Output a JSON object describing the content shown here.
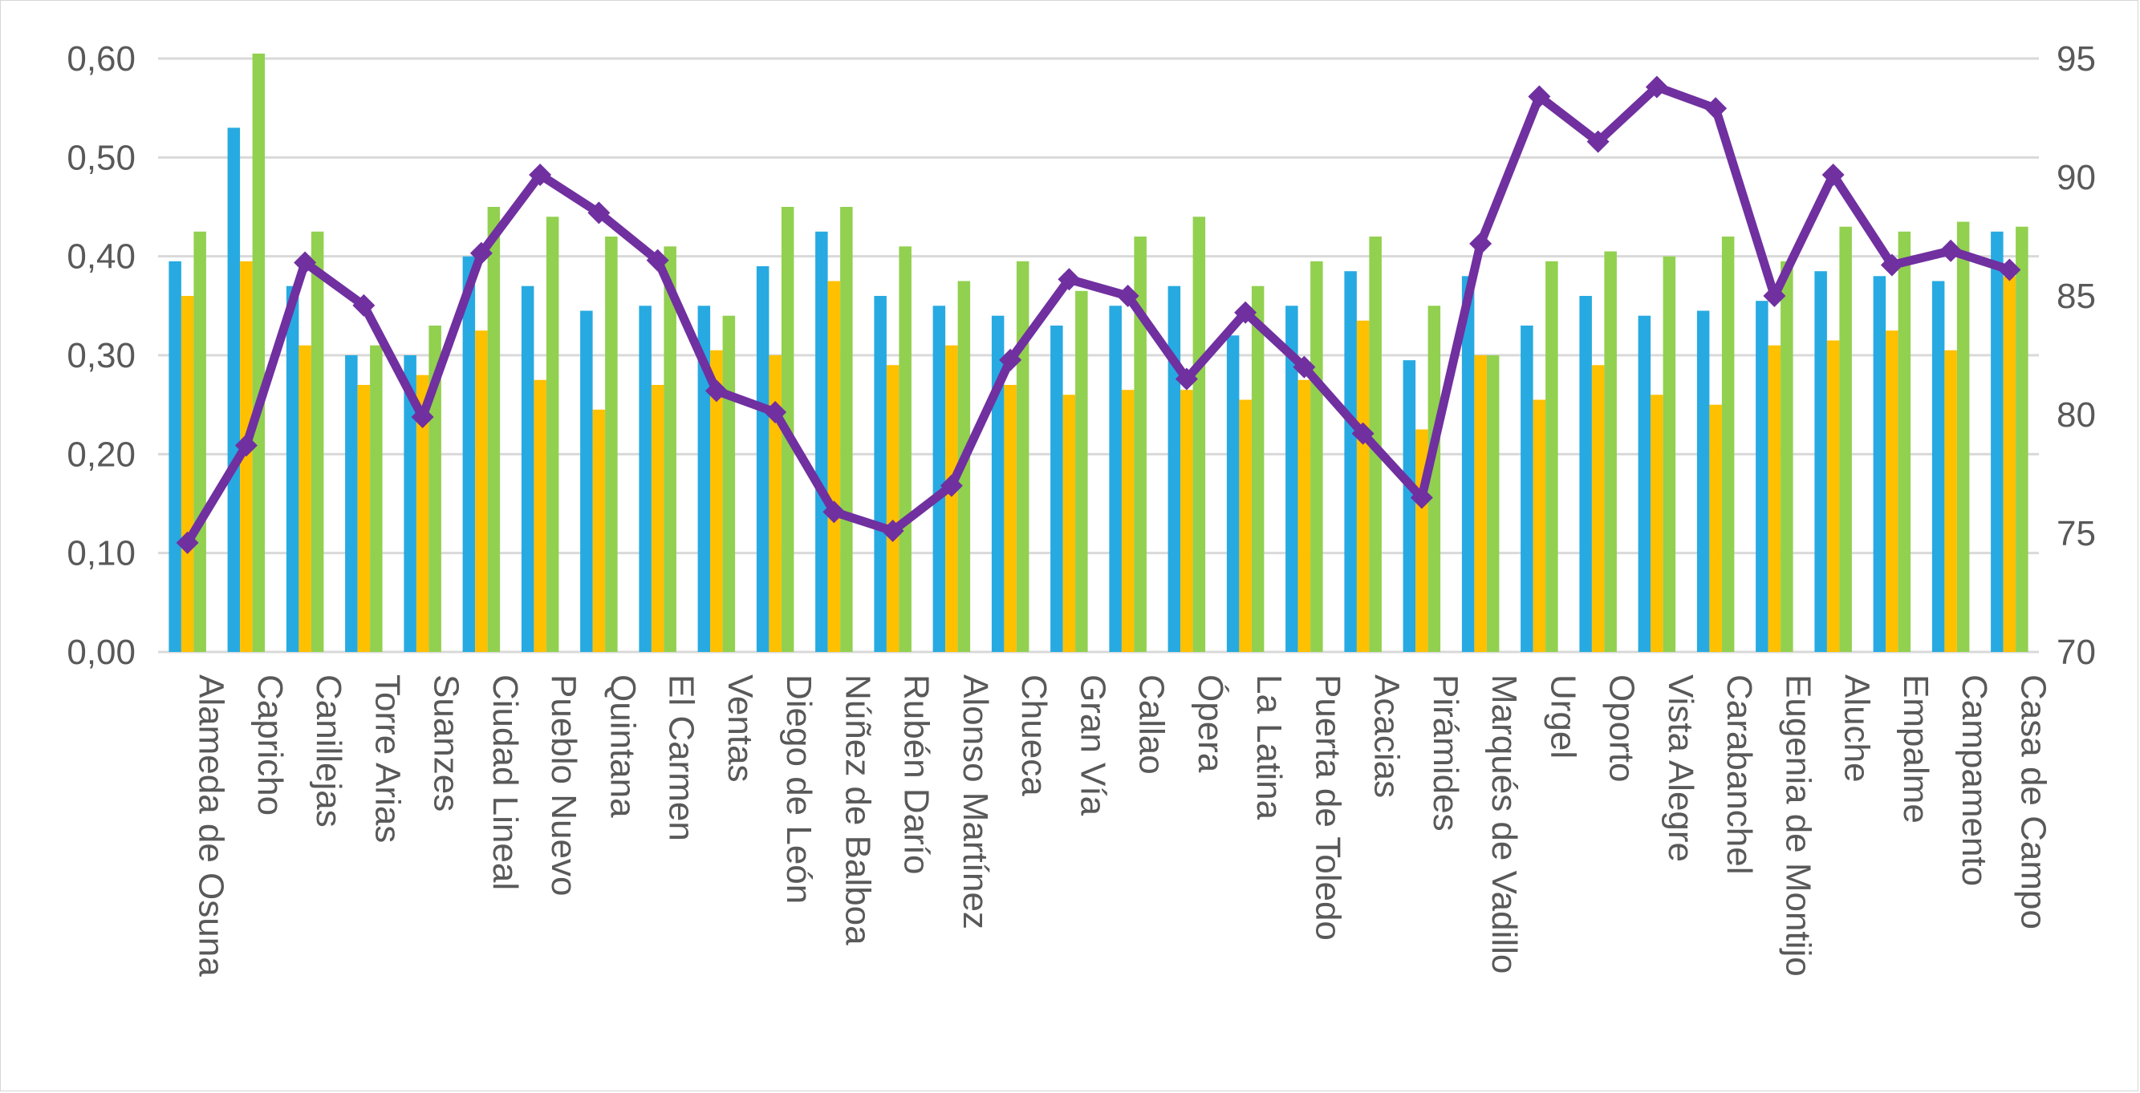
{
  "chart_data": {
    "type": "bar",
    "subtype": "grouped-bars-with-line-overlay",
    "title": "",
    "xlabel": "",
    "ylabel": "",
    "legend": "none",
    "grid": true,
    "categories": [
      "Alameda de Osuna",
      "Capricho",
      "Canillejas",
      "Torre Arias",
      "Suanzes",
      "Ciudad Lineal",
      "Pueblo Nuevo",
      "Quintana",
      "El Carmen",
      "Ventas",
      "Diego de León",
      "Núñez de Balboa",
      "Rubén Darío",
      "Alonso Martínez",
      "Chueca",
      "Gran Vía",
      "Callao",
      "Ópera",
      "La Latina",
      "Puerta de Toledo",
      "Acacias",
      "Pirámides",
      "Marqués de Vadillo",
      "Urgel",
      "Oporto",
      "Vista Alegre",
      "Carabanchel",
      "Eugenia de Montijo",
      "Aluche",
      "Empalme",
      "Campamento",
      "Casa de Campo"
    ],
    "series": [
      {
        "name": "blue-bars",
        "type": "bar",
        "axis": "left",
        "color": "#27AAE1",
        "values": [
          0.395,
          0.53,
          0.37,
          0.3,
          0.3,
          0.4,
          0.37,
          0.345,
          0.35,
          0.35,
          0.39,
          0.425,
          0.36,
          0.35,
          0.34,
          0.33,
          0.35,
          0.37,
          0.32,
          0.35,
          0.385,
          0.295,
          0.38,
          0.33,
          0.36,
          0.34,
          0.345,
          0.355,
          0.385,
          0.38,
          0.375,
          0.425
        ]
      },
      {
        "name": "yellow-bars",
        "type": "bar",
        "axis": "left",
        "color": "#FFC000",
        "values": [
          0.36,
          0.395,
          0.31,
          0.27,
          0.28,
          0.325,
          0.275,
          0.245,
          0.27,
          0.305,
          0.3,
          0.375,
          0.29,
          0.31,
          0.27,
          0.26,
          0.265,
          0.265,
          0.255,
          0.275,
          0.335,
          0.225,
          0.3,
          0.255,
          0.29,
          0.26,
          0.25,
          0.31,
          0.315,
          0.325,
          0.305,
          0.38
        ]
      },
      {
        "name": "green-bars",
        "type": "bar",
        "axis": "left",
        "color": "#92D050",
        "values": [
          0.425,
          0.605,
          0.425,
          0.31,
          0.33,
          0.45,
          0.44,
          0.42,
          0.41,
          0.34,
          0.45,
          0.45,
          0.41,
          0.375,
          0.395,
          0.365,
          0.42,
          0.44,
          0.37,
          0.395,
          0.42,
          0.35,
          0.3,
          0.395,
          0.405,
          0.4,
          0.42,
          0.395,
          0.43,
          0.425,
          0.435,
          0.43
        ]
      },
      {
        "name": "purple-line",
        "type": "line",
        "axis": "right",
        "color": "#7030A0",
        "marker": "diamond",
        "values": [
          74.6,
          78.7,
          86.4,
          84.6,
          79.9,
          86.8,
          90.1,
          88.5,
          86.5,
          81.0,
          80.1,
          75.9,
          75.1,
          77.0,
          82.3,
          85.7,
          85.0,
          81.5,
          84.3,
          82.0,
          79.2,
          76.5,
          87.2,
          93.4,
          91.5,
          93.8,
          92.9,
          85.0,
          90.1,
          86.3,
          86.9,
          86.1
        ]
      }
    ],
    "left_axis": {
      "min": 0,
      "max": 0.6,
      "step": 0.1,
      "tick_labels": [
        "0,00",
        "0,10",
        "0,20",
        "0,30",
        "0,40",
        "0,50",
        "0,60"
      ]
    },
    "right_axis": {
      "min": 70,
      "max": 95,
      "step": 5,
      "tick_labels": [
        "70",
        "75",
        "80",
        "85",
        "90",
        "95"
      ]
    }
  },
  "colors": {
    "background": "#FFFFFF",
    "gridline": "#D9D9D9",
    "axis_line": "#D9D9D9",
    "tick_label": "#595959",
    "frame_border": "#D6D6D6",
    "bar_blue": "#27AAE1",
    "bar_yellow": "#FFC000",
    "bar_green": "#92D050",
    "line_purple": "#7030A0"
  }
}
